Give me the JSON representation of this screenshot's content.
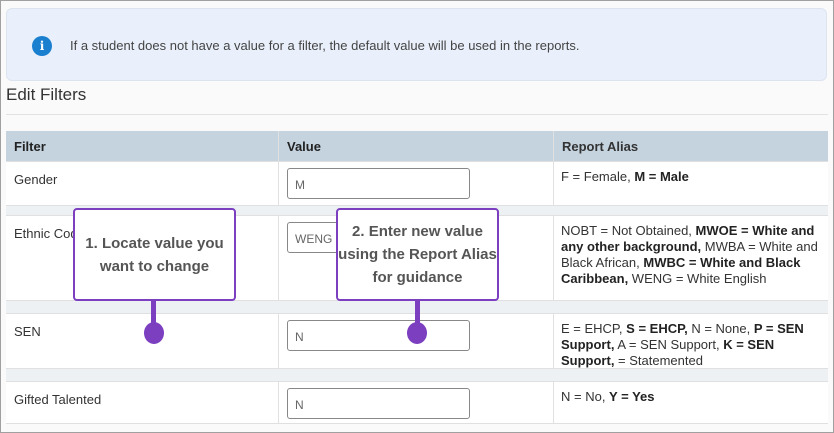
{
  "info": {
    "icon": "info-icon",
    "text": "If a student does not have a value for a filter, the default value will be used in the reports."
  },
  "title": "Edit Filters",
  "table": {
    "headers": [
      "Filter",
      "Value",
      "Report Alias"
    ],
    "rows": [
      {
        "filter": "Gender",
        "value": "M",
        "alias": [
          {
            "t": "F = Female, ",
            "b": false
          },
          {
            "t": "M = Male",
            "b": true
          }
        ]
      },
      {
        "filter": "Ethnic Code",
        "value": "WENG",
        "alias": [
          {
            "t": "NOBT = Not Obtained, ",
            "b": false
          },
          {
            "t": "MWOE = White and any other background,",
            "b": true
          },
          {
            "t": " MWBA = White and Black African, ",
            "b": false
          },
          {
            "t": "MWBC = White and Black Caribbean,",
            "b": true
          },
          {
            "t": " WENG = White English",
            "b": false
          }
        ]
      },
      {
        "filter": "SEN",
        "value": "N",
        "alias": [
          {
            "t": "E = EHCP, ",
            "b": false
          },
          {
            "t": "S = EHCP,",
            "b": true
          },
          {
            "t": " N = None, ",
            "b": false
          },
          {
            "t": "P = SEN Support,",
            "b": true
          },
          {
            "t": " A = SEN Support, ",
            "b": false
          },
          {
            "t": "K = SEN Support,",
            "b": true
          },
          {
            "t": " = Statemented",
            "b": false
          }
        ]
      },
      {
        "filter": "Gifted Talented",
        "value": "N",
        "alias": [
          {
            "t": "N = No, ",
            "b": false
          },
          {
            "t": "Y = Yes",
            "b": true
          }
        ]
      }
    ]
  },
  "callouts": [
    {
      "text": "1. Locate value you want to change"
    },
    {
      "text": "2. Enter new value using the Report Alias for guidance"
    }
  ],
  "colors": {
    "accent": "#7b3fbf",
    "info_bg": "#e9f0fb",
    "header_bg": "#c5d3df",
    "info_icon": "#1b7fd0"
  }
}
